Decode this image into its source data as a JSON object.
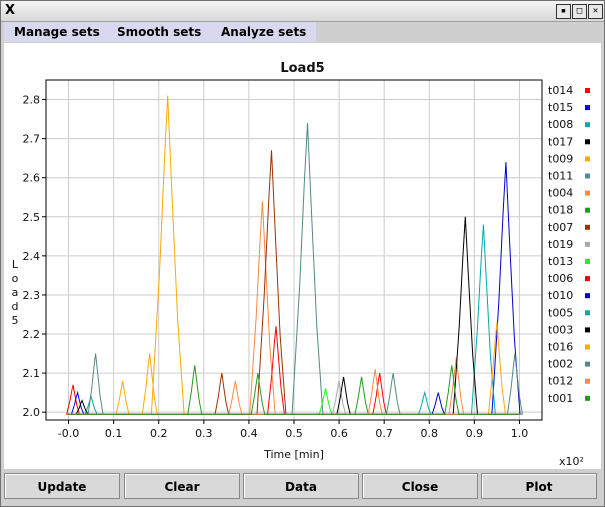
{
  "window": {
    "close_symbol": "X",
    "buttons": [
      "minimize",
      "maximize",
      "close"
    ]
  },
  "menu": [
    "Manage sets",
    "Smooth sets",
    "Analyze sets"
  ],
  "buttons": {
    "update": "Update",
    "clear": "Clear",
    "data": "Data",
    "close": "Close",
    "plot": "Plot"
  },
  "chart_data": {
    "type": "line",
    "title": "Load5",
    "xlabel": "Time [min]",
    "ylabel": "Load5",
    "x_scale_note": "x10²",
    "xlim": [
      -0.05,
      1.05
    ],
    "ylim": [
      1.98,
      2.85
    ],
    "x_ticks": [
      "-0.0",
      "0.1",
      "0.2",
      "0.3",
      "0.4",
      "0.5",
      "0.6",
      "0.7",
      "0.8",
      "0.9",
      "1.0"
    ],
    "y_ticks": [
      "2.0",
      "2.1",
      "2.2",
      "2.3",
      "2.4",
      "2.5",
      "2.6",
      "2.7",
      "2.8"
    ],
    "grid": true,
    "legend_position": "right",
    "series": [
      {
        "name": "t014",
        "color": "#ff0000",
        "peaks": [
          [
            0.01,
            2.07
          ]
        ]
      },
      {
        "name": "t015",
        "color": "#0000ff",
        "peaks": [
          [
            0.02,
            2.05
          ]
        ]
      },
      {
        "name": "t008",
        "color": "#00aaaa",
        "peaks": [
          [
            0.05,
            2.04
          ]
        ]
      },
      {
        "name": "t017",
        "color": "#000000",
        "peaks": [
          [
            0.03,
            2.03
          ]
        ]
      },
      {
        "name": "t009",
        "color": "#ffaa00",
        "peaks": [
          [
            0.22,
            2.81
          ],
          [
            0.18,
            2.15
          ]
        ]
      },
      {
        "name": "t011",
        "color": "#558888",
        "peaks": [
          [
            0.06,
            2.15
          ],
          [
            0.53,
            2.74
          ]
        ]
      },
      {
        "name": "t004",
        "color": "#ff8844",
        "peaks": [
          [
            0.43,
            2.54
          ],
          [
            0.86,
            2.14
          ]
        ]
      },
      {
        "name": "t018",
        "color": "#229922",
        "peaks": [
          [
            0.28,
            2.12
          ],
          [
            0.65,
            2.09
          ]
        ]
      },
      {
        "name": "t007",
        "color": "#993300",
        "peaks": [
          [
            0.45,
            2.67
          ],
          [
            0.34,
            2.1
          ]
        ]
      },
      {
        "name": "t019",
        "color": "#aaaaaa",
        "peaks": [
          [
            0.6,
            2.08
          ]
        ]
      },
      {
        "name": "t013",
        "color": "#22ee22",
        "peaks": [
          [
            0.57,
            2.06
          ]
        ]
      },
      {
        "name": "t006",
        "color": "#ff0000",
        "peaks": [
          [
            0.46,
            2.22
          ],
          [
            0.69,
            2.1
          ]
        ]
      },
      {
        "name": "t010",
        "color": "#0000cc",
        "peaks": [
          [
            0.97,
            2.64
          ],
          [
            0.82,
            2.05
          ]
        ]
      },
      {
        "name": "t005",
        "color": "#00aaaa",
        "peaks": [
          [
            0.92,
            2.48
          ],
          [
            0.79,
            2.05
          ]
        ]
      },
      {
        "name": "t003",
        "color": "#000000",
        "peaks": [
          [
            0.88,
            2.5
          ],
          [
            0.61,
            2.09
          ]
        ]
      },
      {
        "name": "t016",
        "color": "#ffaa00",
        "peaks": [
          [
            0.95,
            2.23
          ],
          [
            0.12,
            2.08
          ]
        ]
      },
      {
        "name": "t002",
        "color": "#558888",
        "peaks": [
          [
            0.72,
            2.1
          ],
          [
            0.99,
            2.15
          ]
        ]
      },
      {
        "name": "t012",
        "color": "#ff8844",
        "peaks": [
          [
            0.37,
            2.08
          ],
          [
            0.68,
            2.11
          ]
        ]
      },
      {
        "name": "t001",
        "color": "#229922",
        "peaks": [
          [
            0.42,
            2.1
          ],
          [
            0.85,
            2.12
          ]
        ]
      }
    ]
  }
}
